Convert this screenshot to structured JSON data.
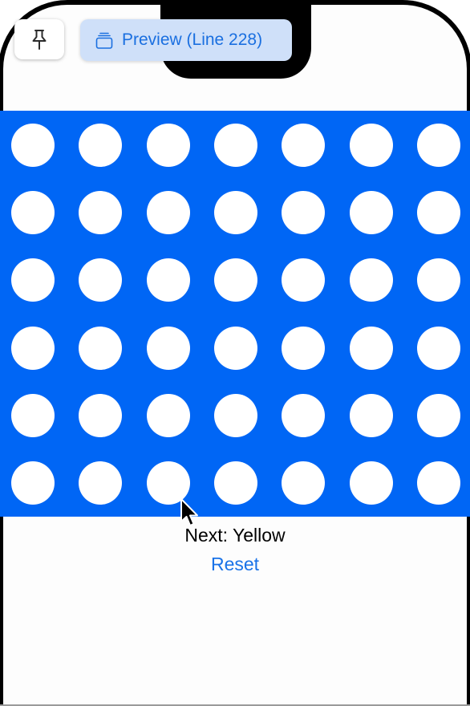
{
  "toolbar": {
    "pin_icon": "pin-icon",
    "preview_icon": "stacked-windows-icon",
    "preview_label": "Preview (Line 228)"
  },
  "board": {
    "rows": 6,
    "columns": 7,
    "color": "#0066f5",
    "empty_slot_color": "#ffffff",
    "slots": [
      [
        "empty",
        "empty",
        "empty",
        "empty",
        "empty",
        "empty",
        "empty"
      ],
      [
        "empty",
        "empty",
        "empty",
        "empty",
        "empty",
        "empty",
        "empty"
      ],
      [
        "empty",
        "empty",
        "empty",
        "empty",
        "empty",
        "empty",
        "empty"
      ],
      [
        "empty",
        "empty",
        "empty",
        "empty",
        "empty",
        "empty",
        "empty"
      ],
      [
        "empty",
        "empty",
        "empty",
        "empty",
        "empty",
        "empty",
        "empty"
      ],
      [
        "empty",
        "empty",
        "empty",
        "empty",
        "empty",
        "empty",
        "empty"
      ]
    ]
  },
  "status": {
    "turn_text": "Next: Yellow"
  },
  "actions": {
    "reset_label": "Reset",
    "accent_color": "#1a73e8"
  },
  "pointer": {
    "icon": "arrow-cursor-icon"
  }
}
